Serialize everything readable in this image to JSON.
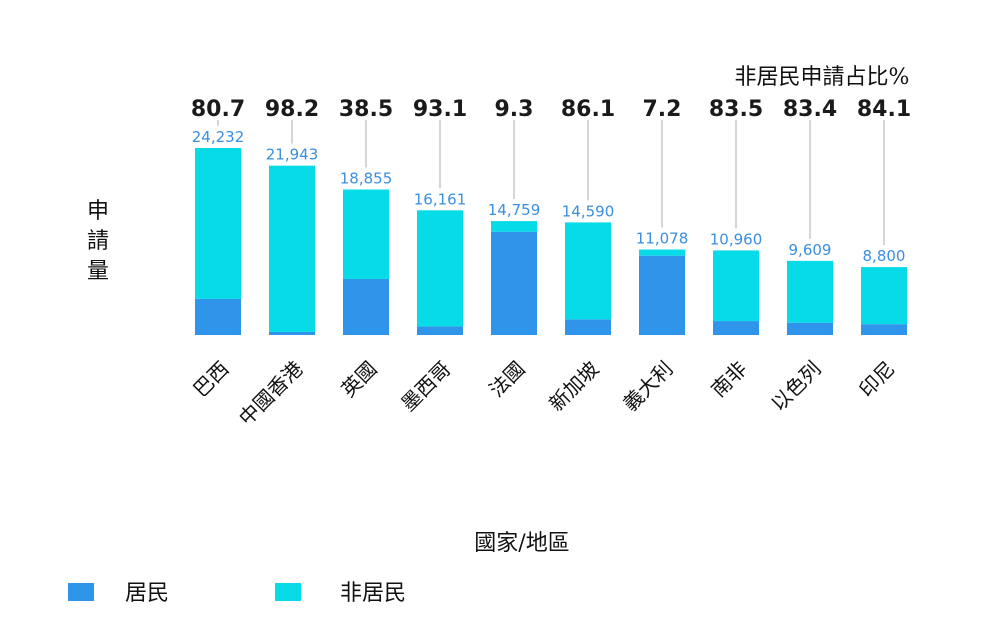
{
  "chart_data": {
    "type": "bar",
    "stacked": true,
    "categories": [
      "巴西",
      "中國香港",
      "英國",
      "墨西哥",
      "法國",
      "新加坡",
      "義大利",
      "南非",
      "以色列",
      "印尼"
    ],
    "series": [
      {
        "name": "居民",
        "color": "#2f95ea",
        "values": [
          4678,
          395,
          7259,
          1115,
          13386,
          2028,
          10280,
          1808,
          1595,
          1408
        ]
      },
      {
        "name": "非居民",
        "color": "#07dbe8",
        "values": [
          19554,
          21548,
          11596,
          15046,
          1373,
          12562,
          798,
          9152,
          8014,
          7392
        ]
      }
    ],
    "totals": [
      24232,
      21943,
      18855,
      16161,
      14759,
      14590,
      11078,
      10960,
      9609,
      8800
    ],
    "total_labels": [
      "24,232",
      "21,943",
      "18,855",
      "16,161",
      "14,759",
      "14,590",
      "11,078",
      "10,960",
      "9,609",
      "8,800"
    ],
    "nonresident_share_labels": [
      "80.7",
      "98.2",
      "38.5",
      "93.1",
      "9.3",
      "86.1",
      "7.2",
      "83.5",
      "83.4",
      "84.1"
    ],
    "share_title": "非居民申請占比%",
    "ylabel": "申請量",
    "xlabel": "國家/地區",
    "ylim": [
      0,
      24232
    ],
    "grid": false,
    "legend_position": "bottom-left"
  },
  "colors": {
    "resident": "#2f95ea",
    "nonresident": "#07dbe8",
    "total_label": "#3a8fe0",
    "share_label": "#1a1a1a",
    "leader_line": "#c8c8c8"
  }
}
